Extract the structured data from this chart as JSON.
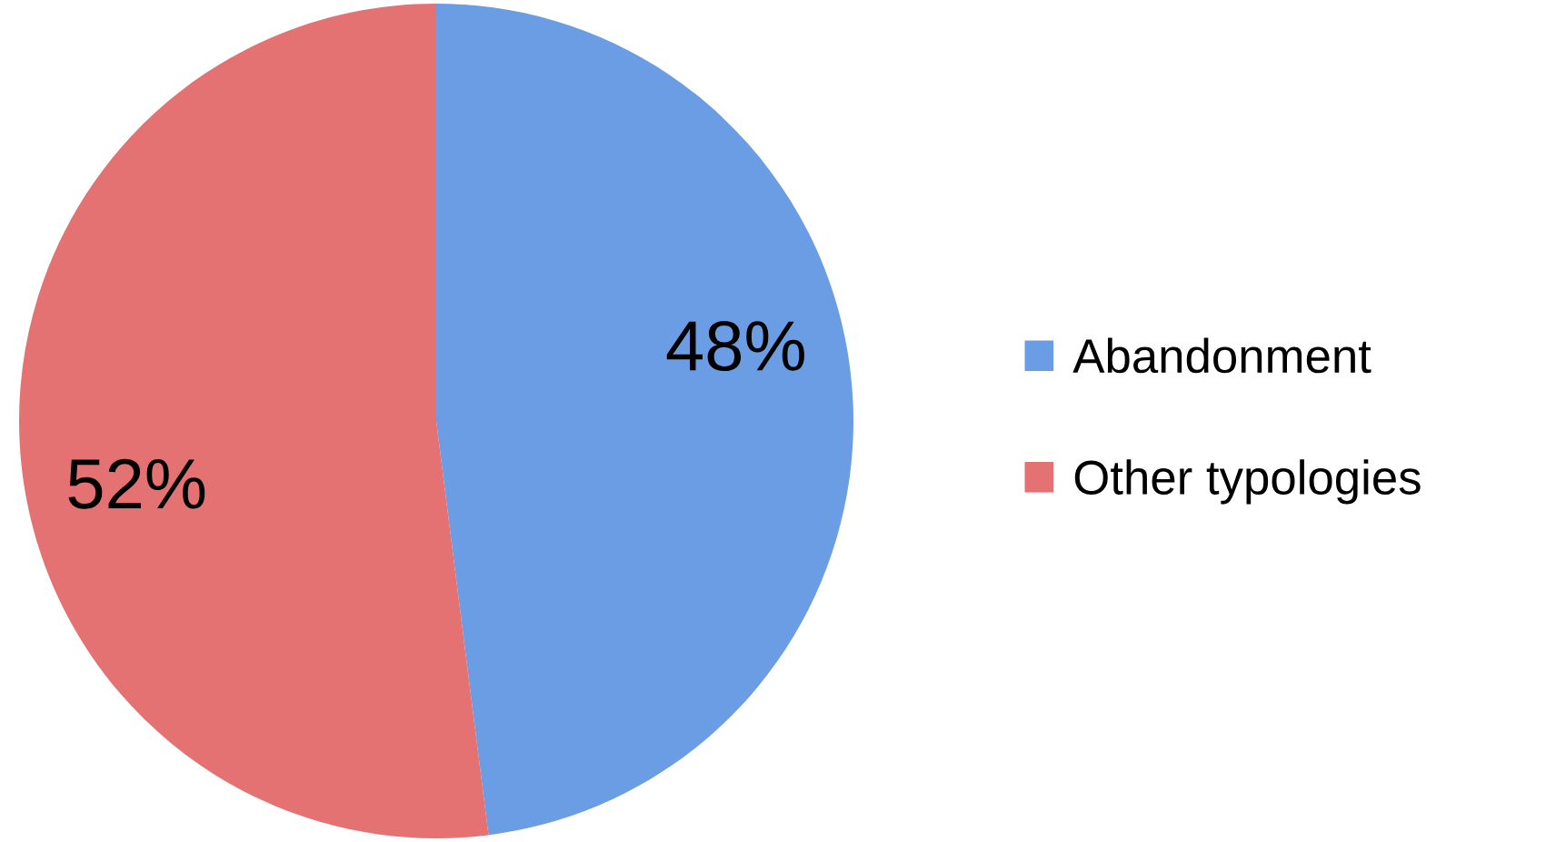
{
  "chart_data": {
    "type": "pie",
    "categories": [
      "Abandonment",
      "Other typologies"
    ],
    "values": [
      48,
      52
    ],
    "colors": [
      "#6a9de3",
      "#e47272"
    ],
    "value_labels": [
      "48%",
      "52%"
    ],
    "legend": "right"
  }
}
